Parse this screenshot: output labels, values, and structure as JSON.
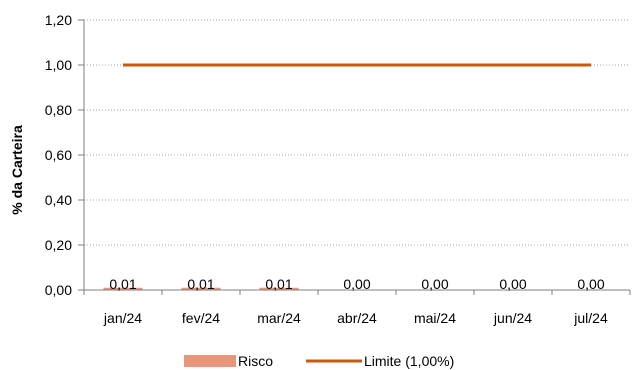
{
  "chart_data": {
    "type": "bar",
    "categories": [
      "jan/24",
      "fev/24",
      "mar/24",
      "abr/24",
      "mai/24",
      "jun/24",
      "jul/24"
    ],
    "series": [
      {
        "name": "Risco",
        "kind": "bar",
        "values": [
          0.01,
          0.01,
          0.01,
          0.0,
          0.0,
          0.0,
          0.0
        ],
        "color": "#E8967A"
      },
      {
        "name": "Limite (1,00%)",
        "kind": "line",
        "values": [
          1.0,
          1.0,
          1.0,
          1.0,
          1.0,
          1.0,
          1.0
        ],
        "color": "#C55A11"
      }
    ],
    "data_labels": [
      "0,01",
      "0,01",
      "0,01",
      "0,00",
      "0,00",
      "0,00",
      "0,00"
    ],
    "ylabel": "% da Carteira",
    "xlabel": "",
    "ylim": [
      0,
      1.2
    ],
    "yticks": [
      0,
      0.2,
      0.4,
      0.6,
      0.8,
      1.0,
      1.2
    ],
    "ytick_labels": [
      "0,00",
      "0,20",
      "0,40",
      "0,60",
      "0,80",
      "1,00",
      "1,20"
    ],
    "grid": "horizontal-dotted",
    "legend": "bottom"
  }
}
